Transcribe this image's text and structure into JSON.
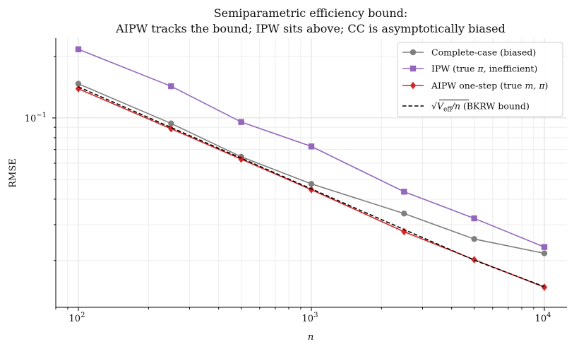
{
  "chart_data": {
    "type": "line",
    "title_lines": [
      "Semiparametric efficiency bound:",
      "AIPW tracks the bound; IPW sits above; CC is asymptotically biased"
    ],
    "xlabel": "n",
    "ylabel": "RMSE",
    "x_scale": "log",
    "y_scale": "log",
    "xlim": [
      80,
      12500
    ],
    "ylim": [
      0.0118,
      0.246
    ],
    "x_ticks": [
      {
        "value": 100,
        "base": "10",
        "exp": "2"
      },
      {
        "value": 1000,
        "base": "10",
        "exp": "3"
      },
      {
        "value": 10000,
        "base": "10",
        "exp": "4"
      }
    ],
    "y_ticks": [
      {
        "value": 0.1,
        "base": "10",
        "exp": "−1"
      }
    ],
    "grid": true,
    "legend_location": "top-right",
    "x": [
      100,
      250,
      500,
      1000,
      2500,
      5000,
      10000
    ],
    "series": [
      {
        "name": "Complete-case  (biased)",
        "color": "#7f7f7f",
        "marker": "circle",
        "style": "solid",
        "values": [
          0.147,
          0.094,
          0.0645,
          0.0475,
          0.034,
          0.0255,
          0.0217
        ]
      },
      {
        "name": "IPW (true π, inefficient)",
        "legend_parts": {
          "before": "IPW (true ",
          "math": "π",
          "after": ", inefficient)"
        },
        "color": "#9467bd",
        "marker": "square",
        "style": "solid",
        "values": [
          0.217,
          0.143,
          0.0955,
          0.0725,
          0.0435,
          0.0322,
          0.0233
        ]
      },
      {
        "name": "AIPW one-step (true m, π)",
        "legend_parts": {
          "before": "AIPW one-step (true ",
          "math": "m, π",
          "after": ")"
        },
        "color": "#d62728",
        "marker": "diamond",
        "style": "solid",
        "values": [
          0.139,
          0.0885,
          0.0628,
          0.0445,
          0.0277,
          0.0202,
          0.0148
        ]
      },
      {
        "name": "√(V_eff/n)  (BKRW bound)",
        "legend_parts": {
          "sqrt_main": "V",
          "sqrt_sub": "eff",
          "sqrt_tail": "/n",
          "after": "  (BKRW bound)"
        },
        "color": "#000000",
        "marker": "none",
        "style": "dashed",
        "values": [
          0.142,
          0.0898,
          0.0635,
          0.0449,
          0.0284,
          0.0201,
          0.0149
        ]
      }
    ]
  }
}
